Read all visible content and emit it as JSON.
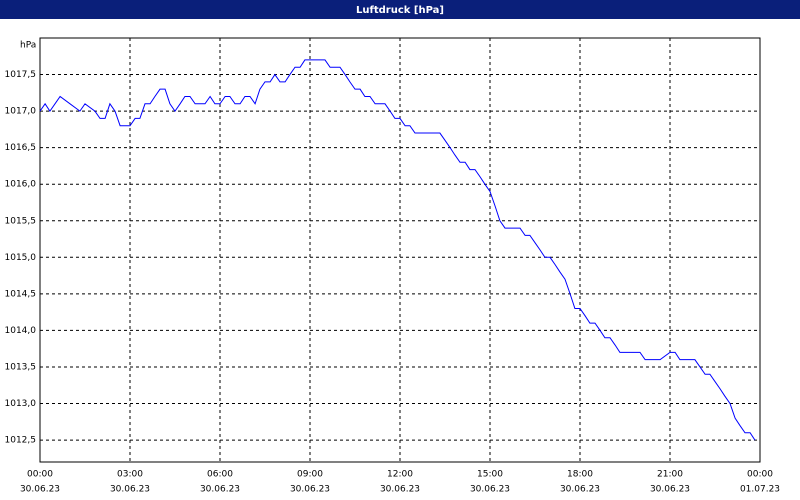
{
  "chart_data": {
    "type": "line",
    "title": "Luftdruck [hPa]",
    "y_label": "hPa",
    "x": [
      0,
      0.17,
      0.33,
      0.5,
      0.67,
      1,
      1.33,
      1.5,
      1.83,
      2,
      2.17,
      2.33,
      2.5,
      2.67,
      3,
      3.17,
      3.33,
      3.5,
      3.67,
      3.83,
      4,
      4.17,
      4.33,
      4.5,
      4.67,
      4.83,
      5,
      5.17,
      5.5,
      5.67,
      5.83,
      6,
      6.17,
      6.33,
      6.5,
      6.67,
      6.83,
      7,
      7.17,
      7.33,
      7.5,
      7.67,
      7.83,
      8,
      8.17,
      8.33,
      8.5,
      8.67,
      8.83,
      9,
      9.33,
      9.5,
      9.67,
      10,
      10.17,
      10.33,
      10.5,
      10.67,
      10.83,
      11,
      11.17,
      11.5,
      11.67,
      11.83,
      12,
      12.17,
      12.33,
      12.5,
      12.67,
      13,
      13.33,
      13.5,
      13.67,
      13.83,
      14,
      14.17,
      14.33,
      14.5,
      14.67,
      14.83,
      15,
      15.17,
      15.33,
      15.5,
      15.67,
      16,
      16.17,
      16.33,
      16.5,
      16.67,
      16.83,
      17,
      17.17,
      17.33,
      17.5,
      17.67,
      17.83,
      18,
      18.17,
      18.33,
      18.5,
      18.67,
      18.83,
      19,
      19.17,
      19.33,
      19.67,
      20,
      20.17,
      20.67,
      21,
      21.17,
      21.33,
      21.83,
      22,
      22.17,
      22.33,
      22.5,
      22.67,
      22.83,
      23,
      23.17,
      23.33,
      23.5,
      23.67,
      23.83
    ],
    "series": [
      {
        "color": "#0000ff",
        "values": [
          1017.0,
          1017.1,
          1017.0,
          1017.1,
          1017.2,
          1017.1,
          1017.0,
          1017.1,
          1017.0,
          1016.9,
          1016.9,
          1017.1,
          1017.0,
          1016.8,
          1016.8,
          1016.9,
          1016.9,
          1017.1,
          1017.1,
          1017.2,
          1017.3,
          1017.3,
          1017.1,
          1017.0,
          1017.1,
          1017.2,
          1017.2,
          1017.1,
          1017.1,
          1017.2,
          1017.1,
          1017.1,
          1017.2,
          1017.2,
          1017.1,
          1017.1,
          1017.2,
          1017.2,
          1017.1,
          1017.3,
          1017.4,
          1017.4,
          1017.5,
          1017.4,
          1017.4,
          1017.5,
          1017.6,
          1017.6,
          1017.7,
          1017.7,
          1017.7,
          1017.7,
          1017.6,
          1017.6,
          1017.5,
          1017.4,
          1017.3,
          1017.3,
          1017.2,
          1017.2,
          1017.1,
          1017.1,
          1017.0,
          1016.9,
          1016.9,
          1016.8,
          1016.8,
          1016.7,
          1016.7,
          1016.7,
          1016.7,
          1016.6,
          1016.5,
          1016.4,
          1016.3,
          1016.3,
          1016.2,
          1016.2,
          1016.1,
          1016.0,
          1015.9,
          1015.7,
          1015.5,
          1015.4,
          1015.4,
          1015.4,
          1015.3,
          1015.3,
          1015.2,
          1015.1,
          1015.0,
          1015.0,
          1014.9,
          1014.8,
          1014.7,
          1014.5,
          1014.3,
          1014.3,
          1014.2,
          1014.1,
          1014.1,
          1014.0,
          1013.9,
          1013.9,
          1013.8,
          1013.7,
          1013.7,
          1013.7,
          1013.6,
          1013.6,
          1013.7,
          1013.7,
          1013.6,
          1013.6,
          1013.5,
          1013.4,
          1013.4,
          1013.3,
          1013.2,
          1013.1,
          1013.0,
          1012.8,
          1012.7,
          1012.6,
          1012.6,
          1012.5
        ]
      }
    ],
    "xlim": [
      0,
      24
    ],
    "xticks": [
      {
        "value": 0,
        "label": [
          "00:00",
          "30.06.23"
        ]
      },
      {
        "value": 3,
        "label": [
          "03:00",
          "30.06.23"
        ]
      },
      {
        "value": 6,
        "label": [
          "06:00",
          "30.06.23"
        ]
      },
      {
        "value": 9,
        "label": [
          "09:00",
          "30.06.23"
        ]
      },
      {
        "value": 12,
        "label": [
          "12:00",
          "30.06.23"
        ]
      },
      {
        "value": 15,
        "label": [
          "15:00",
          "30.06.23"
        ]
      },
      {
        "value": 18,
        "label": [
          "18:00",
          "30.06.23"
        ]
      },
      {
        "value": 21,
        "label": [
          "21:00",
          "30.06.23"
        ]
      },
      {
        "value": 24,
        "label": [
          "00:00",
          "01.07.23"
        ]
      }
    ],
    "ylim": [
      1012.2,
      1018.0
    ],
    "yticks": [
      {
        "value": 1012.5,
        "label": "1012,5"
      },
      {
        "value": 1013,
        "label": "1013,0"
      },
      {
        "value": 1013.5,
        "label": "1013,5"
      },
      {
        "value": 1014,
        "label": "1014,0"
      },
      {
        "value": 1014.5,
        "label": "1014,5"
      },
      {
        "value": 1015,
        "label": "1015,0"
      },
      {
        "value": 1015.5,
        "label": "1015,5"
      },
      {
        "value": 1016,
        "label": "1016,0"
      },
      {
        "value": 1016.5,
        "label": "1016,5"
      },
      {
        "value": 1017,
        "label": "1017,0"
      },
      {
        "value": 1017.5,
        "label": "1017,5"
      }
    ],
    "grid": true
  }
}
